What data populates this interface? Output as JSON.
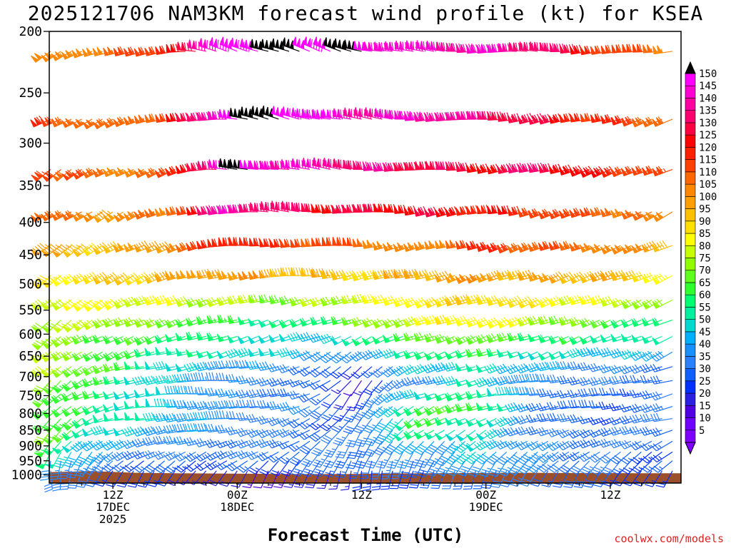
{
  "header": {
    "title": "2025121706 NAM3KM forecast wind profile (kt) for KSEA"
  },
  "footer": {
    "xlabel": "Forecast Time (UTC)",
    "credit": "coolwx.com/models"
  },
  "chart_data": {
    "type": "wind-barb time-height section",
    "title": "2025121706 NAM3KM forecast wind profile (kt) for KSEA",
    "xlabel": "Forecast Time (UTC)",
    "ylabel": "",
    "y_units": "hPa",
    "y_scale": "log",
    "ylim": [
      1030,
      200
    ],
    "y_ticks": [
      200,
      250,
      300,
      350,
      400,
      450,
      500,
      550,
      600,
      650,
      700,
      750,
      800,
      850,
      900,
      950,
      1000
    ],
    "levels": [
      215,
      275,
      330,
      385,
      435,
      485,
      530,
      570,
      605,
      640,
      675,
      710,
      745,
      780,
      815,
      850,
      885,
      920,
      950,
      985
    ],
    "x_hours_start": 0,
    "x_hours_end": 60,
    "x_step_hours": 1,
    "x_ticks": [
      {
        "hour": 6,
        "labels": [
          "12Z",
          "17DEC",
          "2025"
        ]
      },
      {
        "hour": 18,
        "labels": [
          "00Z",
          "18DEC"
        ]
      },
      {
        "hour": 30,
        "labels": [
          "12Z"
        ]
      },
      {
        "hour": 42,
        "labels": [
          "00Z",
          "19DEC"
        ]
      },
      {
        "hour": 54,
        "labels": [
          "12Z"
        ]
      }
    ],
    "speed_profile": {
      "hours": [
        0,
        6,
        12,
        18,
        24,
        30,
        36,
        42,
        48,
        54,
        60
      ],
      "rows": {
        "215": [
          100,
          104,
          118,
          150,
          150,
          150,
          140,
          140,
          135,
          115,
          105
        ],
        "275": [
          115,
          105,
          112,
          150,
          150,
          140,
          140,
          135,
          125,
          115,
          110
        ],
        "330": [
          115,
          105,
          108,
          150,
          140,
          135,
          130,
          125,
          130,
          120,
          110
        ],
        "385": [
          110,
          100,
          105,
          140,
          130,
          125,
          125,
          120,
          115,
          110,
          100
        ],
        "435": [
          95,
          92,
          100,
          120,
          115,
          108,
          100,
          115,
          110,
          105,
          95
        ],
        "485": [
          85,
          88,
          95,
          100,
          95,
          90,
          95,
          100,
          95,
          95,
          85
        ],
        "530": [
          80,
          82,
          80,
          75,
          70,
          78,
          85,
          90,
          85,
          80,
          70
        ],
        "570": [
          75,
          75,
          68,
          60,
          55,
          65,
          80,
          85,
          75,
          65,
          55
        ],
        "605": [
          75,
          65,
          60,
          55,
          45,
          50,
          65,
          70,
          60,
          55,
          50
        ],
        "640": [
          75,
          65,
          55,
          50,
          45,
          35,
          55,
          60,
          50,
          45,
          40
        ],
        "675": [
          75,
          65,
          48,
          40,
          35,
          20,
          45,
          50,
          40,
          35,
          30
        ],
        "710": [
          70,
          60,
          45,
          35,
          30,
          15,
          35,
          50,
          35,
          30,
          30
        ],
        "745": [
          70,
          55,
          45,
          35,
          30,
          20,
          50,
          60,
          30,
          25,
          30
        ],
        "780": [
          65,
          55,
          45,
          35,
          35,
          25,
          60,
          65,
          30,
          25,
          30
        ],
        "815": [
          65,
          55,
          45,
          35,
          30,
          25,
          60,
          55,
          30,
          25,
          30
        ],
        "850": [
          70,
          48,
          40,
          35,
          30,
          30,
          55,
          50,
          30,
          30,
          30
        ],
        "885": [
          60,
          40,
          35,
          30,
          30,
          30,
          40,
          45,
          35,
          30,
          30
        ],
        "920": [
          55,
          35,
          30,
          30,
          30,
          30,
          35,
          45,
          35,
          30,
          25
        ],
        "950": [
          40,
          30,
          25,
          25,
          25,
          30,
          30,
          40,
          35,
          30,
          25
        ],
        "985": [
          35,
          25,
          20,
          15,
          15,
          20,
          25,
          30,
          30,
          25,
          20
        ]
      }
    },
    "direction_profile": {
      "hours": [
        0,
        6,
        12,
        18,
        24,
        30,
        36,
        42,
        48,
        54,
        60
      ],
      "rows": {
        "215": [
          240,
          250,
          265,
          290,
          290,
          285,
          275,
          270,
          270,
          265,
          260
        ],
        "275": [
          240,
          245,
          255,
          280,
          285,
          280,
          270,
          265,
          260,
          255,
          250
        ],
        "330": [
          235,
          240,
          250,
          275,
          280,
          275,
          265,
          265,
          255,
          250,
          245
        ],
        "385": [
          235,
          240,
          250,
          270,
          275,
          270,
          260,
          260,
          255,
          250,
          245
        ],
        "435": [
          235,
          240,
          250,
          265,
          270,
          265,
          255,
          255,
          250,
          250,
          245
        ],
        "485": [
          230,
          240,
          250,
          260,
          265,
          260,
          255,
          250,
          250,
          250,
          245
        ],
        "530": [
          230,
          240,
          250,
          255,
          255,
          255,
          250,
          250,
          250,
          250,
          245
        ],
        "570": [
          230,
          240,
          250,
          255,
          250,
          250,
          250,
          250,
          250,
          250,
          245
        ],
        "605": [
          230,
          245,
          250,
          255,
          250,
          245,
          250,
          250,
          250,
          250,
          245
        ],
        "640": [
          230,
          245,
          255,
          255,
          250,
          235,
          250,
          250,
          250,
          250,
          245
        ],
        "675": [
          230,
          250,
          260,
          260,
          255,
          220,
          250,
          250,
          255,
          255,
          250
        ],
        "710": [
          225,
          250,
          265,
          265,
          255,
          215,
          250,
          255,
          260,
          260,
          255
        ],
        "745": [
          225,
          255,
          265,
          265,
          255,
          210,
          250,
          255,
          265,
          260,
          255
        ],
        "780": [
          220,
          255,
          265,
          265,
          255,
          210,
          245,
          250,
          260,
          260,
          255
        ],
        "815": [
          220,
          255,
          265,
          265,
          250,
          210,
          240,
          245,
          255,
          255,
          255
        ],
        "850": [
          220,
          250,
          260,
          260,
          245,
          210,
          235,
          240,
          250,
          250,
          250
        ],
        "885": [
          210,
          245,
          255,
          255,
          240,
          205,
          225,
          235,
          245,
          245,
          245
        ],
        "920": [
          200,
          235,
          245,
          245,
          235,
          200,
          215,
          225,
          235,
          235,
          235
        ],
        "950": [
          190,
          225,
          235,
          235,
          220,
          195,
          205,
          215,
          225,
          225,
          225
        ],
        "985": [
          180,
          210,
          215,
          215,
          200,
          190,
          195,
          200,
          210,
          210,
          210
        ]
      }
    },
    "terrain": {
      "color": "#9b4f2a",
      "surface_pressure_hours": [
        0,
        4,
        8,
        12,
        16,
        20,
        24,
        28,
        32,
        36,
        40,
        44,
        48,
        52,
        56,
        60
      ],
      "surface_pressure_hpa": [
        990,
        986,
        992,
        994,
        995,
        996,
        997,
        997,
        995,
        994,
        993,
        992,
        993,
        993,
        994,
        994
      ]
    },
    "colorbar": {
      "labels": [
        "150",
        "145",
        "140",
        "135",
        "130",
        "125",
        "120",
        "115",
        "110",
        "105",
        "100",
        "95",
        "90",
        "85",
        "80",
        "75",
        "70",
        "65",
        "60",
        "55",
        "50",
        "45",
        "40",
        "35",
        "30",
        "25",
        "20",
        "15",
        "10",
        "5"
      ],
      "bins": [
        {
          "min": 0,
          "max": 5,
          "color": "#7f00ff"
        },
        {
          "min": 5,
          "max": 10,
          "color": "#6f00ff"
        },
        {
          "min": 10,
          "max": 15,
          "color": "#5000e0"
        },
        {
          "min": 15,
          "max": 20,
          "color": "#2a20e0"
        },
        {
          "min": 20,
          "max": 25,
          "color": "#0030ff"
        },
        {
          "min": 25,
          "max": 30,
          "color": "#1060ff"
        },
        {
          "min": 30,
          "max": 35,
          "color": "#2a80ff"
        },
        {
          "min": 35,
          "max": 40,
          "color": "#1a90ff"
        },
        {
          "min": 40,
          "max": 45,
          "color": "#00b0ff"
        },
        {
          "min": 45,
          "max": 50,
          "color": "#00d8d0"
        },
        {
          "min": 50,
          "max": 55,
          "color": "#00f0a0"
        },
        {
          "min": 55,
          "max": 60,
          "color": "#00ff70"
        },
        {
          "min": 60,
          "max": 65,
          "color": "#30ff30"
        },
        {
          "min": 65,
          "max": 70,
          "color": "#60ff20"
        },
        {
          "min": 70,
          "max": 75,
          "color": "#90ff00"
        },
        {
          "min": 75,
          "max": 80,
          "color": "#c8ff00"
        },
        {
          "min": 80,
          "max": 85,
          "color": "#ffff00"
        },
        {
          "min": 85,
          "max": 90,
          "color": "#ffe000"
        },
        {
          "min": 90,
          "max": 95,
          "color": "#ffc000"
        },
        {
          "min": 95,
          "max": 100,
          "color": "#ffa000"
        },
        {
          "min": 100,
          "max": 105,
          "color": "#ff8800"
        },
        {
          "min": 105,
          "max": 110,
          "color": "#ff6800"
        },
        {
          "min": 110,
          "max": 115,
          "color": "#ff4000"
        },
        {
          "min": 115,
          "max": 120,
          "color": "#ff2000"
        },
        {
          "min": 120,
          "max": 125,
          "color": "#ff0000"
        },
        {
          "min": 125,
          "max": 130,
          "color": "#ff0040"
        },
        {
          "min": 130,
          "max": 135,
          "color": "#ff0070"
        },
        {
          "min": 135,
          "max": 140,
          "color": "#ff00a0"
        },
        {
          "min": 140,
          "max": 145,
          "color": "#ff00d0"
        },
        {
          "min": 145,
          "max": 150,
          "color": "#ff00ff"
        },
        {
          "min": 150,
          "max": 999,
          "color": "#000000"
        }
      ]
    },
    "grid": false,
    "legend": "right"
  }
}
